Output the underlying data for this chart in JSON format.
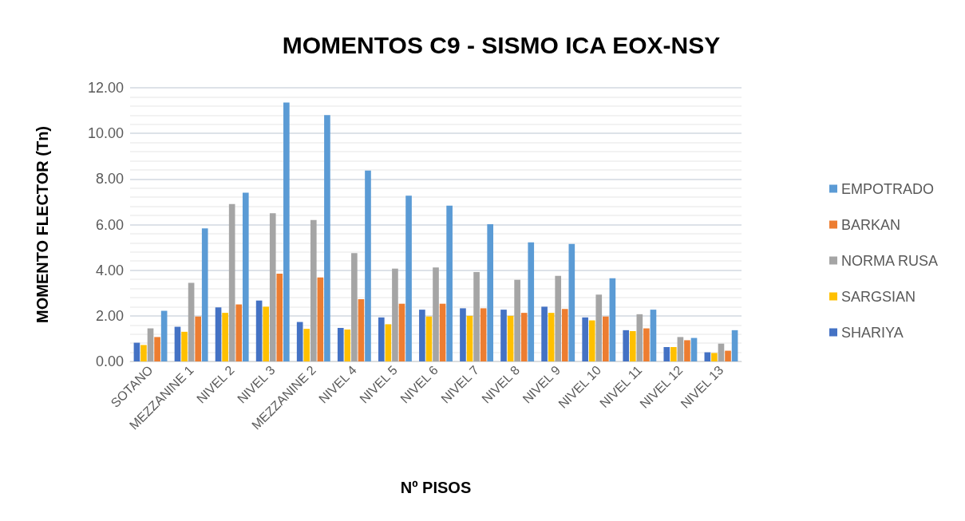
{
  "chart_data": {
    "type": "bar",
    "title": "MOMENTOS C9 - SISMO ICA EOX-NSY",
    "xlabel": "Nº PISOS",
    "ylabel": "MOMENTO FLECTOR (Tn)",
    "categories": [
      "SOTANO",
      "MEZZANINE 1",
      "NIVEL 2",
      "NIVEL 3",
      "MEZZANINE 2",
      "NIVEL 4",
      "NIVEL 5",
      "NIVEL 6",
      "NIVEL 7",
      "NIVEL 8",
      "NIVEL 9",
      "NIVEL 10",
      "NIVEL 11",
      "NIVEL 12",
      "NIVEL 13"
    ],
    "series": [
      {
        "name": "SHARIYA",
        "color": "#4472c4",
        "values": [
          0.82,
          1.52,
          2.37,
          2.67,
          1.73,
          1.47,
          1.93,
          2.27,
          2.33,
          2.27,
          2.4,
          1.93,
          1.37,
          0.63,
          0.4
        ]
      },
      {
        "name": "SARGSIAN",
        "color": "#ffc000",
        "values": [
          0.72,
          1.3,
          2.13,
          2.4,
          1.43,
          1.4,
          1.63,
          1.97,
          2.0,
          2.0,
          2.13,
          1.8,
          1.33,
          0.63,
          0.37
        ]
      },
      {
        "name": "NORMA RUSA",
        "color": "#a5a5a5",
        "values": [
          1.45,
          3.45,
          6.9,
          6.5,
          6.2,
          4.75,
          4.07,
          4.12,
          3.92,
          3.58,
          3.75,
          2.93,
          2.07,
          1.07,
          0.78
        ]
      },
      {
        "name": "BARKAN",
        "color": "#ed7d31",
        "values": [
          1.07,
          1.97,
          2.5,
          3.85,
          3.68,
          2.73,
          2.53,
          2.53,
          2.33,
          2.13,
          2.3,
          1.97,
          1.45,
          0.93,
          0.47
        ]
      },
      {
        "name": "EMPOTRADO",
        "color": "#5b9bd5",
        "values": [
          2.22,
          5.83,
          7.4,
          11.35,
          10.8,
          8.37,
          7.27,
          6.83,
          6.02,
          5.22,
          5.15,
          3.65,
          2.27,
          1.03,
          1.37
        ]
      }
    ],
    "ylim": [
      0,
      12
    ],
    "yticks": [
      {
        "value": 0,
        "label": "0.00"
      },
      {
        "value": 2,
        "label": "2.00"
      },
      {
        "value": 4,
        "label": "4.00"
      },
      {
        "value": 6,
        "label": "6.00"
      },
      {
        "value": 8,
        "label": "8.00"
      },
      {
        "value": 10,
        "label": "10.00"
      },
      {
        "value": 12,
        "label": "12.00"
      }
    ],
    "grid": "y",
    "legend": "right"
  }
}
